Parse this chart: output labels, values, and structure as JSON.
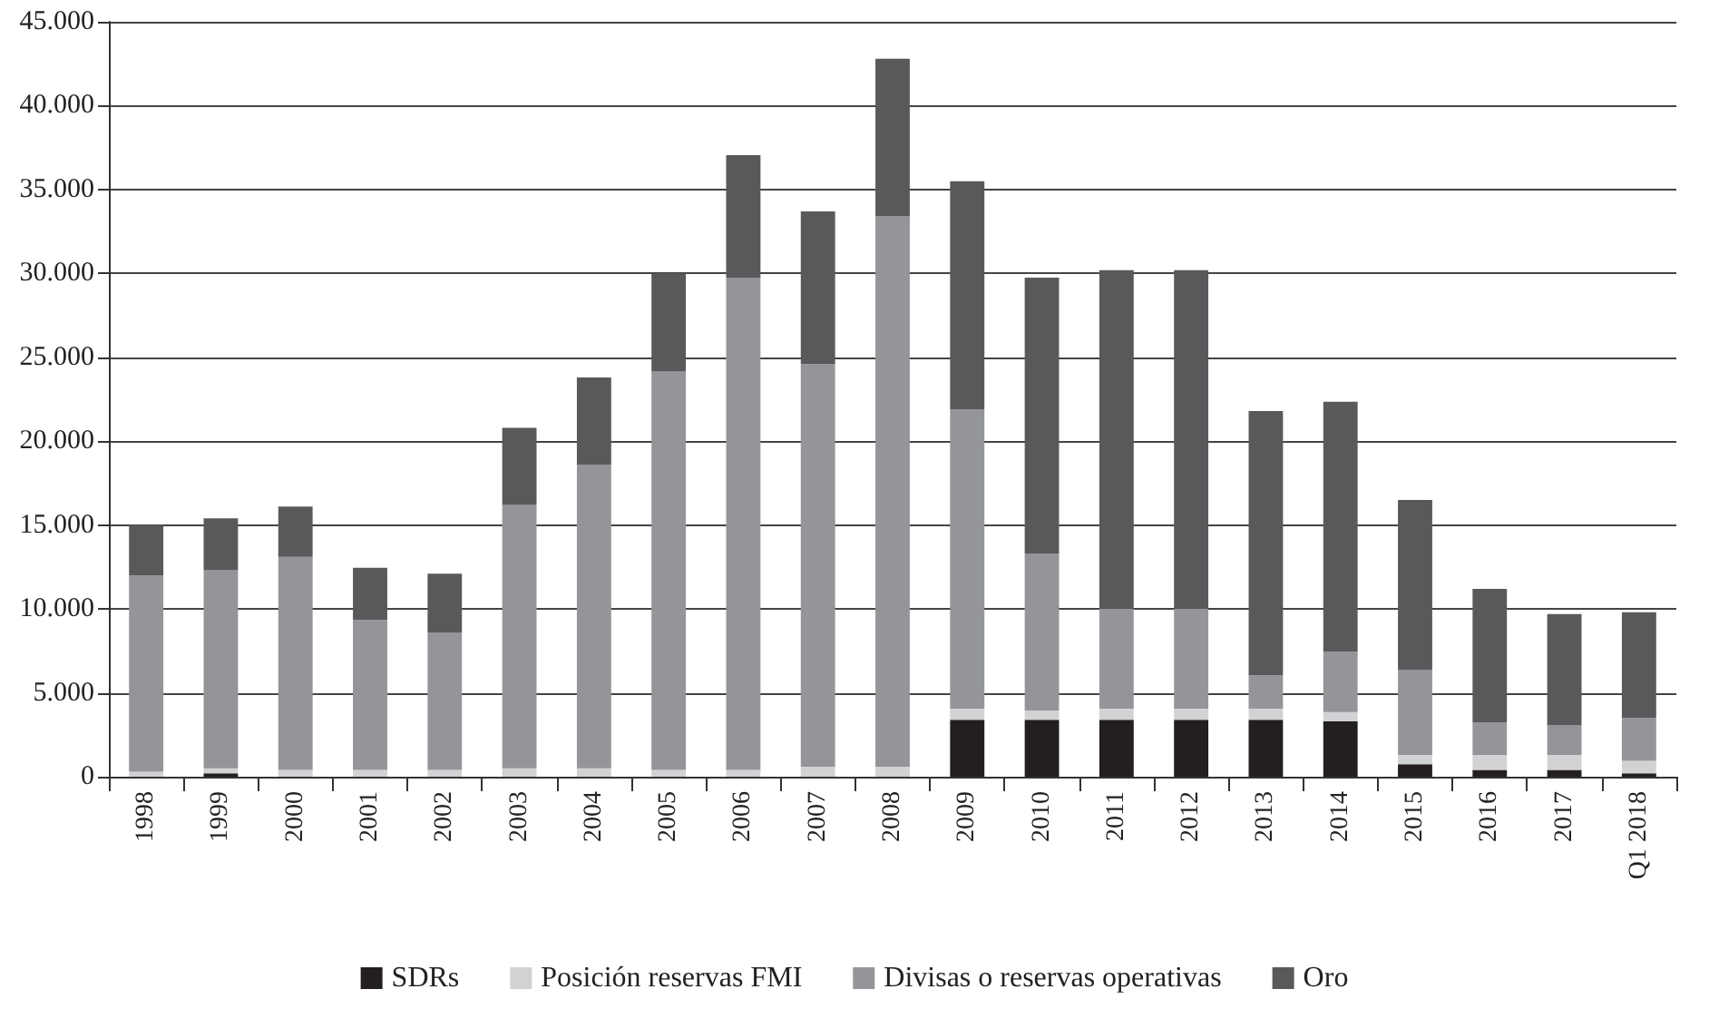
{
  "chart_data": {
    "type": "bar",
    "stacked": true,
    "categories": [
      "1998",
      "1999",
      "2000",
      "2001",
      "2002",
      "2003",
      "2004",
      "2005",
      "2006",
      "2007",
      "2008",
      "2009",
      "2010",
      "2011",
      "2012",
      "2013",
      "2014",
      "2015",
      "2016",
      "2017",
      "Q1 2018"
    ],
    "series": [
      {
        "name": "SDRs",
        "color": "#231f20",
        "values": [
          0,
          200,
          0,
          0,
          0,
          0,
          0,
          0,
          0,
          0,
          0,
          3400,
          3400,
          3400,
          3400,
          3400,
          3300,
          750,
          400,
          400,
          200
        ]
      },
      {
        "name": "Posición reservas FMI",
        "color": "#d1d2d4",
        "values": [
          300,
          300,
          400,
          400,
          400,
          500,
          500,
          400,
          400,
          600,
          600,
          650,
          550,
          650,
          650,
          650,
          550,
          550,
          900,
          900,
          750
        ]
      },
      {
        "name": "Divisas o reservas operativas",
        "color": "#939598",
        "values": [
          11700,
          11800,
          12700,
          8950,
          8200,
          15700,
          18100,
          23750,
          29350,
          24000,
          32800,
          17850,
          9350,
          5950,
          5950,
          2000,
          3600,
          5050,
          1950,
          1750,
          2550
        ]
      },
      {
        "name": "Oro",
        "color": "#58595b",
        "values": [
          3000,
          3100,
          3000,
          3100,
          3500,
          4600,
          5200,
          5850,
          7300,
          9100,
          9400,
          13600,
          16450,
          20200,
          20200,
          15750,
          14900,
          10150,
          7950,
          6650,
          6300
        ]
      }
    ],
    "ylim": [
      0,
      45000
    ],
    "yticks": [
      {
        "value": 0,
        "label": "0"
      },
      {
        "value": 5000,
        "label": "5.000"
      },
      {
        "value": 10000,
        "label": "10.000"
      },
      {
        "value": 15000,
        "label": "15.000"
      },
      {
        "value": 20000,
        "label": "20.000"
      },
      {
        "value": 25000,
        "label": "25.000"
      },
      {
        "value": 30000,
        "label": "30.000"
      },
      {
        "value": 35000,
        "label": "35.000"
      },
      {
        "value": 40000,
        "label": "40.000"
      },
      {
        "value": 45000,
        "label": "45.000"
      }
    ],
    "grid": "y",
    "legend": "bottom"
  }
}
